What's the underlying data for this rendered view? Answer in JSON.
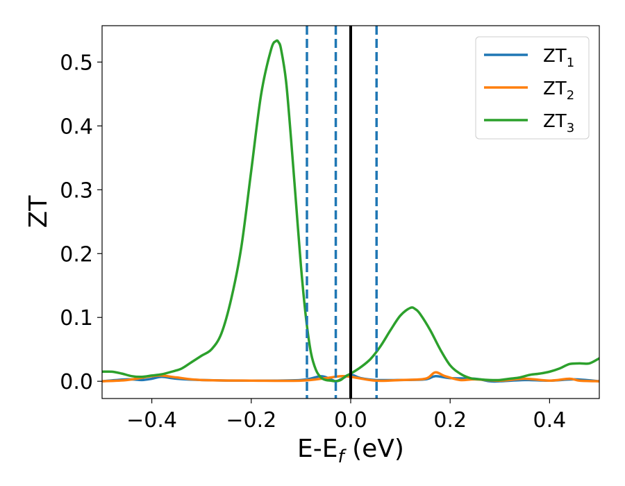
{
  "chart_data": {
    "type": "line",
    "xlabel": "E-E",
    "xlabel_subscript": "f",
    "xlabel_unit": " (eV)",
    "ylabel": "ZT",
    "xlim": [
      -0.5,
      0.5
    ],
    "ylim": [
      -0.027,
      0.557
    ],
    "xticks": [
      -0.4,
      -0.2,
      0.0,
      0.2,
      0.4
    ],
    "xtick_labels": [
      "−0.4",
      "−0.2",
      "0.0",
      "0.2",
      "0.4"
    ],
    "yticks": [
      0.0,
      0.1,
      0.2,
      0.3,
      0.4,
      0.5
    ],
    "ytick_labels": [
      "0.0",
      "0.1",
      "0.2",
      "0.3",
      "0.4",
      "0.5"
    ],
    "legend_position": "top-right",
    "series": [
      {
        "name": "ZT",
        "subscript": "1",
        "color": "#1f77b4",
        "x": [
          -0.5,
          -0.45,
          -0.42,
          -0.4,
          -0.38,
          -0.35,
          -0.3,
          -0.2,
          -0.1,
          -0.06,
          -0.04,
          -0.03,
          -0.02,
          0.0,
          0.02,
          0.05,
          0.1,
          0.15,
          0.17,
          0.2,
          0.25,
          0.28,
          0.3,
          0.35,
          0.4,
          0.45,
          0.5
        ],
        "y": [
          0.0,
          0.003,
          0.002,
          0.004,
          0.007,
          0.004,
          0.002,
          0.001,
          0.002,
          0.008,
          0.003,
          0.0,
          0.003,
          0.01,
          0.005,
          0.002,
          0.002,
          0.003,
          0.008,
          0.005,
          0.004,
          0.0,
          0.0,
          0.002,
          0.001,
          0.003,
          0.0
        ]
      },
      {
        "name": "ZT",
        "subscript": "2",
        "color": "#ff7f0e",
        "x": [
          -0.5,
          -0.45,
          -0.4,
          -0.38,
          -0.35,
          -0.3,
          -0.2,
          -0.1,
          -0.05,
          -0.02,
          0.0,
          0.05,
          0.1,
          0.15,
          0.17,
          0.19,
          0.22,
          0.25,
          0.3,
          0.35,
          0.4,
          0.44,
          0.46,
          0.5
        ],
        "y": [
          0.0,
          0.002,
          0.008,
          0.009,
          0.006,
          0.002,
          0.001,
          0.001,
          0.005,
          0.008,
          0.007,
          0.001,
          0.002,
          0.004,
          0.014,
          0.008,
          0.002,
          0.003,
          0.001,
          0.004,
          0.001,
          0.004,
          0.001,
          0.0
        ]
      },
      {
        "name": "ZT",
        "subscript": "3",
        "color": "#2ca02c",
        "x": [
          -0.5,
          -0.48,
          -0.46,
          -0.44,
          -0.42,
          -0.4,
          -0.38,
          -0.36,
          -0.34,
          -0.32,
          -0.3,
          -0.28,
          -0.26,
          -0.24,
          -0.22,
          -0.2,
          -0.18,
          -0.16,
          -0.15,
          -0.145,
          -0.14,
          -0.13,
          -0.12,
          -0.11,
          -0.1,
          -0.09,
          -0.08,
          -0.07,
          -0.06,
          -0.05,
          -0.04,
          -0.03,
          -0.02,
          -0.01,
          0.0,
          0.02,
          0.04,
          0.06,
          0.08,
          0.1,
          0.12,
          0.13,
          0.14,
          0.16,
          0.18,
          0.2,
          0.22,
          0.24,
          0.26,
          0.28,
          0.3,
          0.32,
          0.34,
          0.36,
          0.38,
          0.4,
          0.42,
          0.44,
          0.46,
          0.48,
          0.5
        ],
        "y": [
          0.015,
          0.015,
          0.012,
          0.008,
          0.007,
          0.009,
          0.011,
          0.015,
          0.02,
          0.03,
          0.04,
          0.05,
          0.075,
          0.13,
          0.21,
          0.33,
          0.45,
          0.52,
          0.533,
          0.531,
          0.52,
          0.47,
          0.38,
          0.28,
          0.18,
          0.1,
          0.045,
          0.018,
          0.006,
          0.002,
          0.001,
          0.0,
          0.002,
          0.008,
          0.012,
          0.022,
          0.035,
          0.055,
          0.08,
          0.103,
          0.115,
          0.113,
          0.105,
          0.08,
          0.05,
          0.025,
          0.012,
          0.005,
          0.003,
          0.002,
          0.002,
          0.004,
          0.006,
          0.01,
          0.012,
          0.015,
          0.02,
          0.027,
          0.028,
          0.028,
          0.036
        ]
      }
    ],
    "vlines": [
      {
        "x": 0.0,
        "color": "#000000",
        "style": "solid"
      },
      {
        "x": -0.088,
        "color": "#1f77b4",
        "style": "dashed"
      },
      {
        "x": -0.03,
        "color": "#1f77b4",
        "style": "dashed"
      },
      {
        "x": 0.052,
        "color": "#1f77b4",
        "style": "dashed"
      }
    ]
  }
}
